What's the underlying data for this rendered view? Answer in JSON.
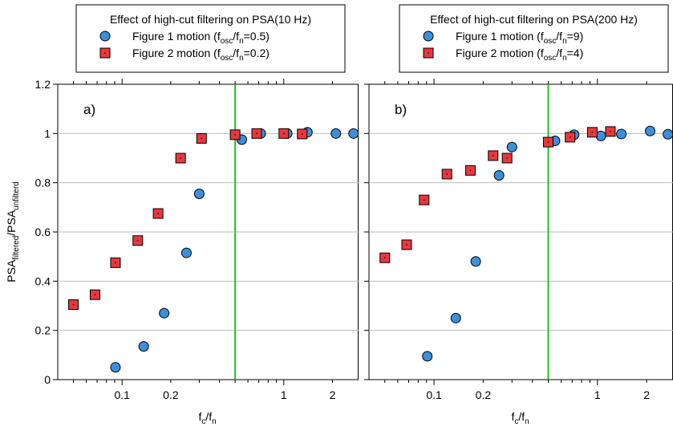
{
  "y_axis_label": {
    "main": "PSA",
    "sub1": "filtered",
    "mid": "/PSA",
    "sub2": "unfilterd"
  },
  "x_axis_label": {
    "main": "f",
    "sub1": "c",
    "mid": "/f",
    "sub2": "n"
  },
  "colors": {
    "circle": "#3d8fdc",
    "square": "#e8383d",
    "vline": "#22c422",
    "grid": "#bbbbbb"
  },
  "chart_data": [
    {
      "type": "scatter",
      "panel_label": "a)",
      "title": "Effect of high-cut filtering on PSA(10 Hz)",
      "x_scale": "log",
      "xlim": [
        0.04,
        2.9
      ],
      "ylim": [
        0,
        1.2
      ],
      "xticks": [
        {
          "v": 0.1,
          "label": "0.1"
        },
        {
          "v": 0.2,
          "label": "0.2"
        },
        {
          "v": 1,
          "label": "1"
        },
        {
          "v": 2,
          "label": "2"
        }
      ],
      "yticks": [
        {
          "v": 0,
          "label": "0"
        },
        {
          "v": 0.2,
          "label": "0.2"
        },
        {
          "v": 0.4,
          "label": "0.4"
        },
        {
          "v": 0.6,
          "label": "0.6"
        },
        {
          "v": 0.8,
          "label": "0.8"
        },
        {
          "v": 1,
          "label": "1"
        },
        {
          "v": 1.2,
          "label": "1.2"
        }
      ],
      "vline": 0.5,
      "grid": "horizontal",
      "legend_position": "top",
      "series": [
        {
          "name": "Figure 1 motion",
          "legend": {
            "pre": "Figure 1 motion (f",
            "s1": "osc",
            "mid": "/f",
            "s2": "n",
            "post": "=0.5)"
          },
          "marker": "circle",
          "x": [
            0.091,
            0.136,
            0.182,
            0.25,
            0.3,
            0.55,
            0.72,
            1.05,
            1.4,
            2.1,
            2.7
          ],
          "y": [
            0.05,
            0.135,
            0.27,
            0.515,
            0.755,
            0.975,
            1.0,
            1.0,
            1.005,
            1.0,
            1.0
          ]
        },
        {
          "name": "Figure 2 motion",
          "legend": {
            "pre": "Figure 2 motion (f",
            "s1": "osc",
            "mid": "/f",
            "s2": "n",
            "post": "=0.2)"
          },
          "marker": "square",
          "x": [
            0.05,
            0.068,
            0.091,
            0.125,
            0.167,
            0.23,
            0.31,
            0.5,
            0.68,
            1.0,
            1.3
          ],
          "y": [
            0.305,
            0.345,
            0.475,
            0.565,
            0.675,
            0.9,
            0.98,
            0.995,
            1.0,
            1.0,
            0.998
          ]
        }
      ]
    },
    {
      "type": "scatter",
      "panel_label": "b)",
      "title": "Effect of high-cut filtering on PSA(200 Hz)",
      "x_scale": "log",
      "xlim": [
        0.04,
        2.9
      ],
      "ylim": [
        0,
        1.2
      ],
      "xticks": [
        {
          "v": 0.1,
          "label": "0.1"
        },
        {
          "v": 0.2,
          "label": "0.2"
        },
        {
          "v": 1,
          "label": "1"
        },
        {
          "v": 2,
          "label": "2"
        }
      ],
      "yticks": [
        0,
        0.2,
        0.4,
        0.6,
        0.8,
        1,
        1.2
      ],
      "vline": 0.5,
      "grid": "horizontal",
      "legend_position": "top",
      "series": [
        {
          "name": "Figure 1 motion",
          "legend": {
            "pre": "Figure 1 motion (f",
            "s1": "osc",
            "mid": "/f",
            "s2": "n",
            "post": "=9)"
          },
          "marker": "circle",
          "x": [
            0.091,
            0.136,
            0.18,
            0.25,
            0.3,
            0.55,
            0.72,
            1.05,
            1.4,
            2.1,
            2.7
          ],
          "y": [
            0.095,
            0.25,
            0.48,
            0.83,
            0.945,
            0.97,
            0.995,
            0.99,
            0.998,
            1.01,
            0.997
          ]
        },
        {
          "name": "Figure 2 motion",
          "legend": {
            "pre": "Figure 2 motion (f",
            "s1": "osc",
            "mid": "/f",
            "s2": "n",
            "post": "=4)"
          },
          "marker": "square",
          "x": [
            0.05,
            0.068,
            0.087,
            0.12,
            0.167,
            0.23,
            0.28,
            0.5,
            0.68,
            0.93,
            1.2
          ],
          "y": [
            0.495,
            0.548,
            0.73,
            0.835,
            0.85,
            0.91,
            0.9,
            0.965,
            0.985,
            1.005,
            1.008
          ]
        }
      ]
    }
  ]
}
